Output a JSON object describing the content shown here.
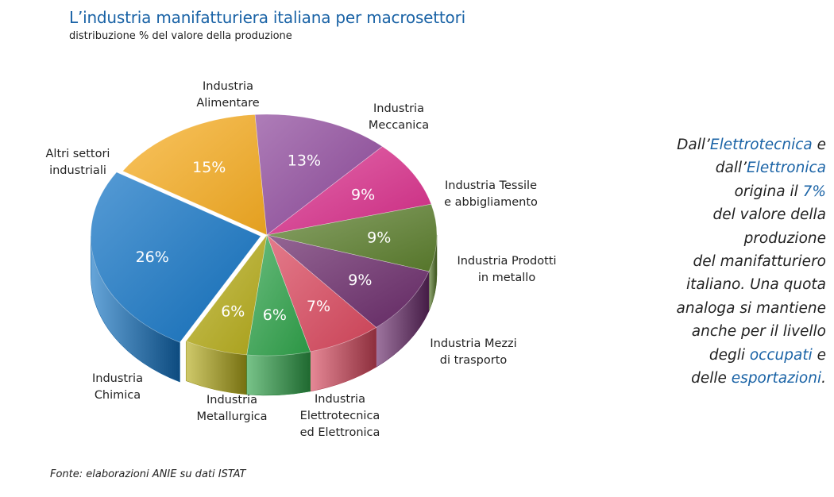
{
  "colors": {
    "title": "#1a63a6",
    "highlight": "#1a63a6"
  },
  "chart_data": {
    "type": "pie",
    "title": "L’industria manifatturiera italiana per macrosettori",
    "subtitle": "distribuzione % del valore della produzione",
    "source": "Fonte: elaborazioni ANIE su dati ISTAT",
    "slices": [
      {
        "label": [
          "Industria",
          "Alimentare"
        ],
        "value": 15,
        "value_label": "15%",
        "color": "#f7ad22"
      },
      {
        "label": [
          "Industria",
          "Meccanica"
        ],
        "value": 13,
        "value_label": "13%",
        "color": "#8f4a9d"
      },
      {
        "label": [
          "Industria Tessile",
          "e abbigliamento"
        ],
        "value": 9,
        "value_label": "9%",
        "color": "#d92e8b"
      },
      {
        "label": [
          "Industria Prodotti",
          "in metallo"
        ],
        "value": 9,
        "value_label": "9%",
        "color": "#5c7f2e"
      },
      {
        "label": [
          "Industria Mezzi",
          "di trasporto"
        ],
        "value": 9,
        "value_label": "9%",
        "color": "#6a2b6b"
      },
      {
        "label": [
          "Industria",
          "Elettrotecnica",
          "ed Elettronica"
        ],
        "value": 7,
        "value_label": "7%",
        "color": "#d9485e"
      },
      {
        "label": [
          "Industria",
          "Metallurgica"
        ],
        "value": 6,
        "value_label": "6%",
        "color": "#2fa24a"
      },
      {
        "label": [
          "Industria",
          "Chimica"
        ],
        "value": 6,
        "value_label": "6%",
        "color": "#b5ac1a"
      },
      {
        "label": [
          "Altri settori",
          "industriali"
        ],
        "value": 26,
        "value_label": "26%",
        "color": "#1474c4"
      }
    ]
  },
  "note": {
    "lines": [
      [
        {
          "t": "Dall’",
          "h": false
        },
        {
          "t": "Elettrotecnica",
          "h": true
        },
        {
          "t": " e",
          "h": false
        }
      ],
      [
        {
          "t": "dall’",
          "h": false
        },
        {
          "t": "Elettronica",
          "h": true
        }
      ],
      [
        {
          "t": "origina il ",
          "h": false
        },
        {
          "t": "7%",
          "h": true
        }
      ],
      [
        {
          "t": "del valore della",
          "h": false
        }
      ],
      [
        {
          "t": "produzione",
          "h": false
        }
      ],
      [
        {
          "t": "del manifatturiero",
          "h": false
        }
      ],
      [
        {
          "t": "italiano. Una quota",
          "h": false
        }
      ],
      [
        {
          "t": "analoga si mantiene",
          "h": false
        }
      ],
      [
        {
          "t": "anche per il livello",
          "h": false
        }
      ],
      [
        {
          "t": "degli ",
          "h": false
        },
        {
          "t": "occupati",
          "h": true
        },
        {
          "t": " e",
          "h": false
        }
      ],
      [
        {
          "t": "delle ",
          "h": false
        },
        {
          "t": "esportazioni",
          "h": true
        },
        {
          "t": ".",
          "h": false
        }
      ]
    ]
  }
}
